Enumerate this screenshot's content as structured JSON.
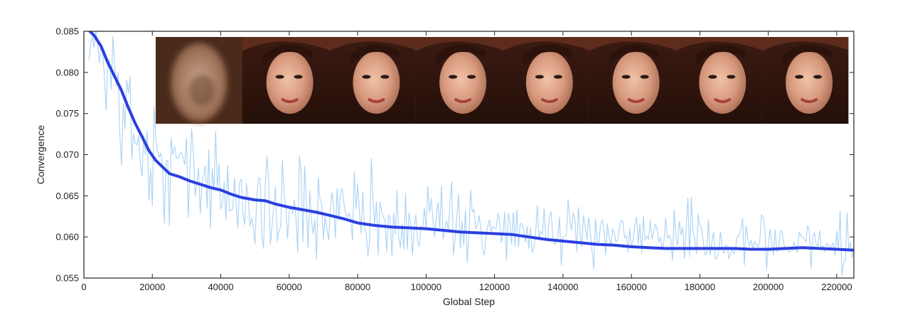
{
  "chart_data": {
    "type": "line",
    "title": "",
    "xlabel": "Global Step",
    "ylabel": "Convergence",
    "xlim": [
      0,
      225000
    ],
    "ylim": [
      0.055,
      0.085
    ],
    "x_ticks": [
      0,
      20000,
      40000,
      60000,
      80000,
      100000,
      120000,
      140000,
      160000,
      180000,
      200000,
      220000
    ],
    "x_tick_labels": [
      "0",
      "20000",
      "40000",
      "60000",
      "80000",
      "100000",
      "120000",
      "140000",
      "160000",
      "180000",
      "200000",
      "220000"
    ],
    "y_ticks": [
      0.055,
      0.06,
      0.065,
      0.07,
      0.075,
      0.08,
      0.085
    ],
    "y_tick_labels": [
      "0.055",
      "0.060",
      "0.065",
      "0.070",
      "0.075",
      "0.080",
      "0.085"
    ],
    "grid": false,
    "legend": "none",
    "colors": {
      "raw": "#a9d2f5",
      "smoothed": "#2a3fe0",
      "axis": "#222222"
    },
    "series": [
      {
        "role": "smoothed",
        "x": [
          1500,
          3000,
          5000,
          7000,
          9000,
          11000,
          13000,
          15000,
          17000,
          19000,
          21000,
          23000,
          25000,
          28000,
          31000,
          34000,
          37000,
          40000,
          43000,
          46000,
          50000,
          53000,
          56000,
          60000,
          64000,
          68000,
          72000,
          76000,
          80000,
          85000,
          90000,
          95000,
          100000,
          105000,
          110000,
          115000,
          120000,
          125000,
          130000,
          135000,
          140000,
          145000,
          150000,
          155000,
          160000,
          165000,
          170000,
          175000,
          180000,
          185000,
          190000,
          195000,
          200000,
          205000,
          210000,
          215000,
          220000,
          225000
        ],
        "y": [
          0.0851,
          0.0845,
          0.0832,
          0.0812,
          0.0795,
          0.0778,
          0.0757,
          0.0738,
          0.0722,
          0.0705,
          0.0693,
          0.0685,
          0.0677,
          0.0673,
          0.0668,
          0.0664,
          0.066,
          0.0657,
          0.0652,
          0.0648,
          0.0645,
          0.0644,
          0.064,
          0.0636,
          0.0633,
          0.063,
          0.0626,
          0.0622,
          0.0617,
          0.0614,
          0.0612,
          0.0611,
          0.061,
          0.0608,
          0.0606,
          0.0605,
          0.0604,
          0.0603,
          0.06,
          0.0597,
          0.0595,
          0.0593,
          0.0591,
          0.059,
          0.0588,
          0.0587,
          0.0586,
          0.0586,
          0.0586,
          0.0586,
          0.0586,
          0.0585,
          0.0585,
          0.0586,
          0.0587,
          0.0586,
          0.0585,
          0.0584
        ]
      }
    ],
    "raw_series": {
      "role": "raw",
      "x_start": 1500,
      "x_step": 500,
      "y": [
        0.0815,
        0.0835,
        0.0844,
        0.083,
        0.0852,
        0.0834,
        0.0812,
        0.0834,
        0.0822,
        0.0795,
        0.0754,
        0.0815,
        0.0815,
        0.078,
        0.0844,
        0.0808,
        0.0783,
        0.08,
        0.0727,
        0.0687,
        0.0762,
        0.0731,
        0.0791,
        0.0775,
        0.0795,
        0.0695,
        0.0725,
        0.0714,
        0.0712,
        0.0723,
        0.0689,
        0.0674,
        0.0723,
        0.07,
        0.0729,
        0.0645,
        0.0683,
        0.0638,
        0.0759,
        0.0717,
        0.0705,
        0.0697,
        0.0702,
        0.0685,
        0.0617,
        0.0692,
        0.0693,
        0.0614,
        0.072,
        0.07,
        0.071,
        0.0697,
        0.0695,
        0.0701,
        0.0703,
        0.0696,
        0.0688,
        0.072,
        0.0624,
        0.0683,
        0.0731,
        0.0703,
        0.065,
        0.0665,
        0.0684,
        0.0628,
        0.0664,
        0.0676,
        0.0686,
        0.0635,
        0.0706,
        0.0611,
        0.0683,
        0.0657,
        0.0728,
        0.0659,
        0.0689,
        0.0634,
        0.0641,
        0.0667,
        0.0621,
        0.0687,
        0.0632,
        0.0632,
        0.0635,
        0.0672,
        0.0638,
        0.0611,
        0.0667,
        0.067,
        0.0628,
        0.0615,
        0.0665,
        0.0648,
        0.0613,
        0.0623,
        0.0611,
        0.0592,
        0.0648,
        0.0672,
        0.0671,
        0.0601,
        0.0586,
        0.0662,
        0.0698,
        0.0669,
        0.0591,
        0.0613,
        0.0638,
        0.0661,
        0.0595,
        0.0608,
        0.0612,
        0.0693,
        0.0651,
        0.0636,
        0.0598,
        0.063,
        0.0636,
        0.0628,
        0.0645,
        0.0622,
        0.0581,
        0.0698,
        0.0679,
        0.0594,
        0.0686,
        0.0639,
        0.0587,
        0.0656,
        0.0621,
        0.0604,
        0.0621,
        0.0573,
        0.0672,
        0.0646,
        0.064,
        0.0597,
        0.0625,
        0.061,
        0.0596,
        0.0631,
        0.0654,
        0.0638,
        0.0599,
        0.0659,
        0.062,
        0.0656,
        0.0659,
        0.064,
        0.0629,
        0.0624,
        0.0629,
        0.0622,
        0.0596,
        0.0679,
        0.0634,
        0.0664,
        0.0632,
        0.0604,
        0.0655,
        0.0611,
        0.0604,
        0.0576,
        0.0595,
        0.0695,
        0.0643,
        0.0616,
        0.0643,
        0.0578,
        0.0643,
        0.0631,
        0.0625,
        0.0619,
        0.0582,
        0.0627,
        0.0623,
        0.0577,
        0.0629,
        0.0603,
        0.0656,
        0.06,
        0.0587,
        0.0616,
        0.0585,
        0.0653,
        0.0585,
        0.0629,
        0.0615,
        0.0578,
        0.0609,
        0.0627,
        0.0595,
        0.0588,
        0.0613,
        0.061,
        0.0635,
        0.0608,
        0.0661,
        0.063,
        0.0647,
        0.062,
        0.06,
        0.0625,
        0.0642,
        0.061,
        0.0662,
        0.0597,
        0.061,
        0.062,
        0.0607,
        0.0643,
        0.0667,
        0.0578,
        0.0598,
        0.0626,
        0.0652,
        0.0586,
        0.0619,
        0.059,
        0.0633,
        0.0569,
        0.0601,
        0.0657,
        0.063,
        0.0634,
        0.061,
        0.0614,
        0.0626,
        0.061,
        0.0585,
        0.0578,
        0.0602,
        0.0612,
        0.0621,
        0.0607,
        0.0613,
        0.0611,
        0.061,
        0.0629,
        0.0619,
        0.0593,
        0.0607,
        0.063,
        0.0571,
        0.0629,
        0.0619,
        0.0591,
        0.063,
        0.0589,
        0.0633,
        0.0588,
        0.0616,
        0.0616,
        0.0609,
        0.0594,
        0.0613,
        0.0586,
        0.0612,
        0.0581,
        0.0587,
        0.0605,
        0.0638,
        0.0597,
        0.0607,
        0.0603,
        0.0634,
        0.0596,
        0.0597,
        0.0623,
        0.0631,
        0.0602,
        0.0591,
        0.0593,
        0.06,
        0.0624,
        0.0566,
        0.06,
        0.0601,
        0.0602,
        0.0646,
        0.062,
        0.0608,
        0.0629,
        0.0622,
        0.0582,
        0.0636,
        0.0605,
        0.0588,
        0.0626,
        0.0612,
        0.0597,
        0.0624,
        0.0605,
        0.0583,
        0.0561,
        0.0622,
        0.0594,
        0.0594,
        0.0615,
        0.0621,
        0.0608,
        0.0578,
        0.0616,
        0.0599,
        0.059,
        0.061,
        0.0605,
        0.0594,
        0.0596,
        0.0612,
        0.062,
        0.0619,
        0.0599,
        0.0602,
        0.0581,
        0.061,
        0.0587,
        0.0596,
        0.0614,
        0.0624,
        0.0591,
        0.0616,
        0.058,
        0.0625,
        0.0596,
        0.0601,
        0.0597,
        0.062,
        0.0597,
        0.0606,
        0.0615,
        0.0611,
        0.0594,
        0.0599,
        0.0586,
        0.0595,
        0.0623,
        0.0598,
        0.0602,
        0.0597,
        0.0571,
        0.0633,
        0.06,
        0.059,
        0.0619,
        0.0603,
        0.0612,
        0.0574,
        0.0609,
        0.0647,
        0.0576,
        0.0648,
        0.0605,
        0.0598,
        0.0579,
        0.0628,
        0.0614,
        0.0611,
        0.0595,
        0.0578,
        0.058,
        0.0621,
        0.0578,
        0.0593,
        0.0606,
        0.0573,
        0.0575,
        0.0582,
        0.0606,
        0.0588,
        0.058,
        0.059,
        0.0589,
        0.0573,
        0.0581,
        0.0584,
        0.0579,
        0.0589,
        0.0601,
        0.0602,
        0.0609,
        0.0623,
        0.0566,
        0.0614,
        0.0598,
        0.0589,
        0.0596,
        0.0585,
        0.0595,
        0.0591,
        0.0588,
        0.0594,
        0.0627,
        0.0624,
        0.0609,
        0.0561,
        0.059,
        0.0609,
        0.0594,
        0.0578,
        0.0609,
        0.0582,
        0.0584,
        0.0607,
        0.0607,
        0.0592,
        0.0585,
        0.0586,
        0.0582,
        0.0583,
        0.0584,
        0.0594,
        0.0588,
        0.0581,
        0.0606,
        0.0602,
        0.0599,
        0.0598,
        0.0594,
        0.0614,
        0.0607,
        0.0562,
        0.06,
        0.0605,
        0.0591,
        0.0589,
        0.0608,
        0.0586,
        0.0589,
        0.0582,
        0.0592,
        0.0591,
        0.0586,
        0.0589,
        0.0593,
        0.0578,
        0.0607,
        0.0585,
        0.0631,
        0.0553,
        0.0568,
        0.0571,
        0.0629,
        0.0585,
        0.0593,
        0.0575,
        0.0582,
        0.0587,
        0.0562,
        0.0569,
        0.0573,
        0.0597,
        0.0583,
        0.0608,
        0.0574,
        0.0588,
        0.0599,
        0.0587,
        0.0572,
        0.0581,
        0.0584,
        0.0577,
        0.0596,
        0.0601,
        0.0587,
        0.061
      ]
    },
    "inset_images": [
      {
        "description": "blurry early-training face sample"
      },
      {
        "description": "face sample"
      },
      {
        "description": "face sample"
      },
      {
        "description": "face sample"
      },
      {
        "description": "face sample"
      },
      {
        "description": "face sample"
      },
      {
        "description": "face sample"
      },
      {
        "description": "face sample"
      }
    ]
  }
}
